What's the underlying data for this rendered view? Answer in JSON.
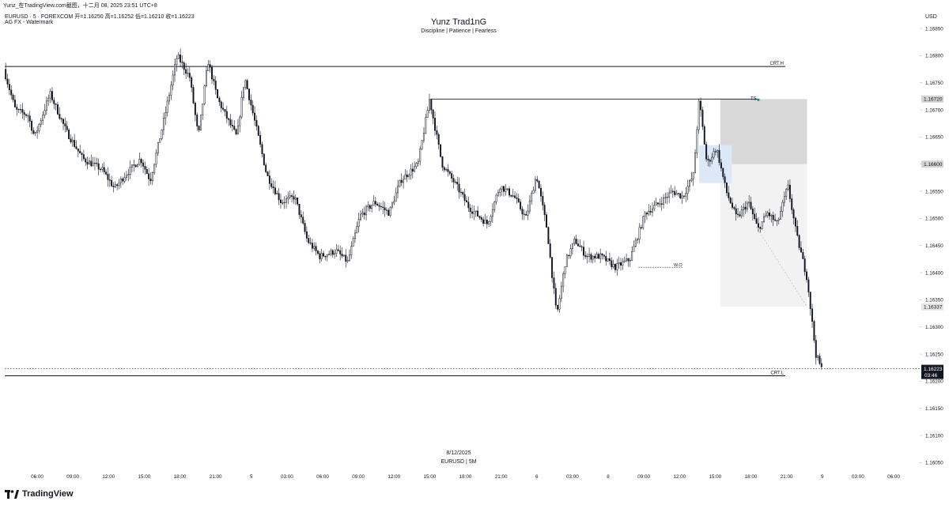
{
  "caption": "Yunz_在TradingView.com截图，十二月 08, 2025 23:51 UTC+8",
  "legend": {
    "symbol_line": "EURUSD · 5 · FOREXCOM  开=1.16250  高=1.16252  低=1.16210  收=1.16223",
    "indicator_line": "AG FX - Watermark"
  },
  "watermark": {
    "title": "Yunz Trad1nG",
    "subtitle": "Discipline | Patience | Fearless",
    "date": "8/12/2025",
    "symbol": "EURUSD | 5M"
  },
  "price_axis": {
    "currency": "USD",
    "ticks": [
      "1.16850",
      "1.16800",
      "1.16750",
      "1.16700",
      "1.16650",
      "1.16600",
      "1.16550",
      "1.16500",
      "1.16450",
      "1.16400",
      "1.16350",
      "1.16300",
      "1.16250",
      "1.16200",
      "1.16150",
      "1.16100",
      "1.16050"
    ]
  },
  "time_axis": {
    "ticks": [
      "06:00",
      "09:00",
      "12:00",
      "15:00",
      "18:00",
      "21:00",
      "5",
      "03:00",
      "06:00",
      "09:00",
      "12:00",
      "15:00",
      "18:00",
      "21:00",
      "6",
      "03:00",
      "8",
      "09:00",
      "12:00",
      "15:00",
      "18:00",
      "21:00",
      "9",
      "03:00",
      "06:00"
    ]
  },
  "annotations": {
    "crt_h_label": "CRT.H",
    "crt_l_label": "CRT.L",
    "ts_label": "TS",
    "wo_label": "W.O"
  },
  "price_badges": {
    "stop_level": "1.16720",
    "entry_level": "1.16600",
    "target_level": "1.16337",
    "last_price": "1.16223",
    "countdown": "03:46"
  },
  "brand": {
    "name": "TradingView",
    "icon": "tradingview-logo-icon"
  },
  "colors": {
    "candle": "#131722",
    "stop_zone": "#d8d8d8",
    "target_zone": "#f2f2f2",
    "fvg_zone": "#dce8f6",
    "ts_marker": "#089981",
    "last_price_badge": "#131722"
  },
  "chart_data": {
    "type": "candlestick",
    "symbol": "EURUSD",
    "timeframe": "5",
    "ylim": [
      1.1602,
      1.16885
    ],
    "levels": {
      "crt_high": 1.1678,
      "crt_low": 1.1621,
      "ts_line": 1.1672,
      "stop": 1.1672,
      "entry": 1.166,
      "target": 1.16337,
      "weekly_open": 1.1641,
      "last": 1.16223
    },
    "price_path": [
      [
        0.0,
        1.16775
      ],
      [
        1.2,
        1.167
      ],
      [
        2.5,
        1.1669
      ],
      [
        3.2,
        1.1665
      ],
      [
        4.8,
        1.1673
      ],
      [
        6.5,
        1.1666
      ],
      [
        8.2,
        1.1661
      ],
      [
        10.2,
        1.1659
      ],
      [
        11.5,
        1.16555
      ],
      [
        12.6,
        1.1658
      ],
      [
        14.2,
        1.1661
      ],
      [
        15.2,
        1.1657
      ],
      [
        16.6,
        1.1668
      ],
      [
        18.0,
        1.168
      ],
      [
        19.3,
        1.1676
      ],
      [
        20.2,
        1.1665
      ],
      [
        21.2,
        1.1679
      ],
      [
        22.2,
        1.1672
      ],
      [
        23.3,
        1.1668
      ],
      [
        24.2,
        1.1665
      ],
      [
        25.0,
        1.1676
      ],
      [
        26.3,
        1.1666
      ],
      [
        27.3,
        1.1658
      ],
      [
        28.8,
        1.1653
      ],
      [
        30.2,
        1.1654
      ],
      [
        31.5,
        1.1646
      ],
      [
        32.8,
        1.1643
      ],
      [
        34.5,
        1.1644
      ],
      [
        35.7,
        1.1642
      ],
      [
        37.0,
        1.16505
      ],
      [
        38.5,
        1.1653
      ],
      [
        40.0,
        1.1651
      ],
      [
        41.2,
        1.1657
      ],
      [
        43.0,
        1.166
      ],
      [
        44.2,
        1.1672
      ],
      [
        45.5,
        1.166
      ],
      [
        47.0,
        1.1656
      ],
      [
        48.3,
        1.1652
      ],
      [
        50.2,
        1.1649
      ],
      [
        51.5,
        1.1656
      ],
      [
        53.0,
        1.1654
      ],
      [
        54.2,
        1.165
      ],
      [
        55.3,
        1.1658
      ],
      [
        56.4,
        1.1648
      ],
      [
        57.4,
        1.1632
      ],
      [
        58.3,
        1.1642
      ],
      [
        59.3,
        1.1646
      ],
      [
        60.5,
        1.1643
      ],
      [
        62.0,
        1.1643
      ],
      [
        63.5,
        1.1641
      ],
      [
        65.0,
        1.16425
      ],
      [
        66.6,
        1.1651
      ],
      [
        68.2,
        1.1653
      ],
      [
        69.4,
        1.1655
      ],
      [
        70.5,
        1.1654
      ],
      [
        71.6,
        1.1658
      ],
      [
        72.2,
        1.1672
      ],
      [
        73.0,
        1.166
      ],
      [
        74.0,
        1.1663
      ],
      [
        75.0,
        1.1655
      ],
      [
        76.1,
        1.165
      ],
      [
        77.3,
        1.1653
      ],
      [
        78.3,
        1.1648
      ],
      [
        79.3,
        1.1651
      ],
      [
        80.3,
        1.1649
      ],
      [
        81.4,
        1.1656
      ],
      [
        82.3,
        1.1647
      ],
      [
        83.4,
        1.1639
      ],
      [
        84.3,
        1.1625
      ],
      [
        84.9,
        1.16223
      ]
    ],
    "zones": {
      "stop_zone": {
        "t0": 74.3,
        "t1": 83.3,
        "top": 1.1672,
        "bottom": 1.166
      },
      "target_zone": {
        "t0": 74.3,
        "t1": 83.3,
        "top": 1.166,
        "bottom": 1.16337
      },
      "fvg_zone": {
        "t0": 72.1,
        "t1": 75.5,
        "top": 1.16635,
        "bottom": 1.16565
      }
    },
    "time_ticks": [
      {
        "label": "06:00",
        "t": 3.0
      },
      {
        "label": "09:00",
        "t": 6.0
      },
      {
        "label": "12:00",
        "t": 9.0
      },
      {
        "label": "15:00",
        "t": 12.0
      },
      {
        "label": "18:00",
        "t": 15.0
      },
      {
        "label": "21:00",
        "t": 18.0
      },
      {
        "label": "5",
        "t": 21.0
      },
      {
        "label": "03:00",
        "t": 24.0
      },
      {
        "label": "06:00",
        "t": 27.0
      },
      {
        "label": "09:00",
        "t": 30.0
      },
      {
        "label": "12:00",
        "t": 33.0
      },
      {
        "label": "15:00",
        "t": 36.0
      },
      {
        "label": "18:00",
        "t": 39.0
      },
      {
        "label": "21:00",
        "t": 42.0
      },
      {
        "label": "6",
        "t": 45.0
      },
      {
        "label": "03:00",
        "t": 48.0
      },
      {
        "label": "8",
        "t": 51.0
      },
      {
        "label": "09:00",
        "t": 54.0
      },
      {
        "label": "12:00",
        "t": 57.0
      },
      {
        "label": "15:00",
        "t": 60.0
      },
      {
        "label": "18:00",
        "t": 63.0
      },
      {
        "label": "21:00",
        "t": 66.0
      },
      {
        "label": "9",
        "t": 69.0
      },
      {
        "label": "03:00",
        "t": 72.0
      },
      {
        "label": "06:00",
        "t": 75.0
      }
    ]
  }
}
